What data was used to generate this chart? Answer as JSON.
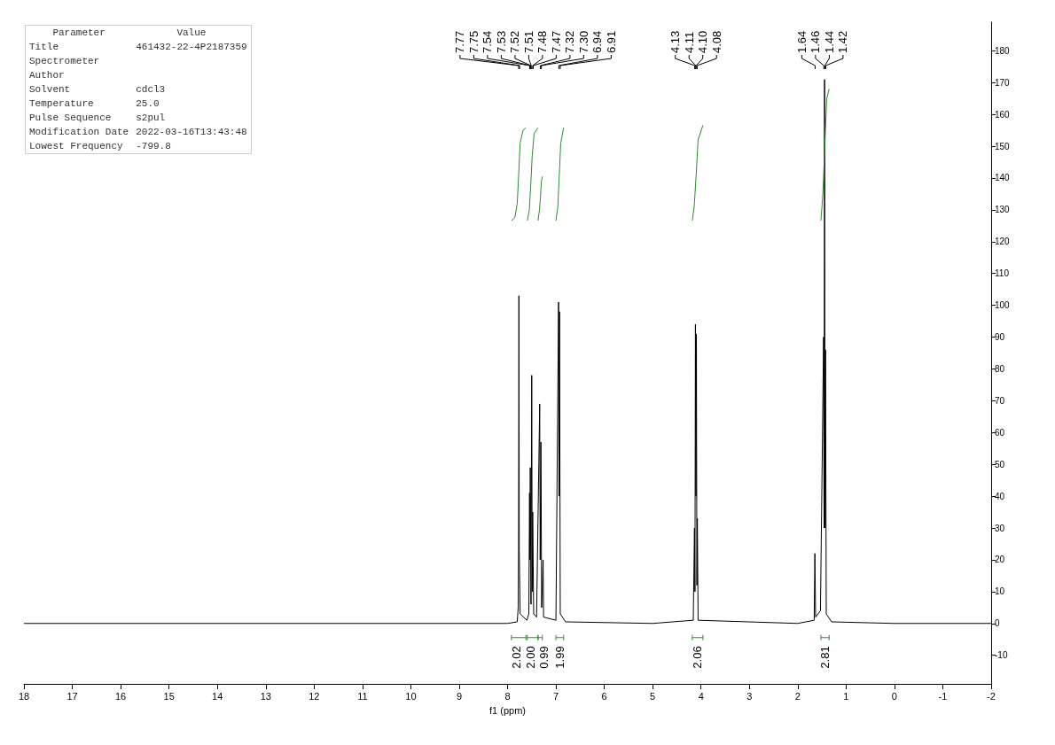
{
  "chart_data": {
    "type": "line",
    "xlabel": "f1 (ppm)",
    "xlim": [
      18,
      -2
    ],
    "xticks": [
      18,
      17,
      16,
      15,
      14,
      13,
      12,
      11,
      10,
      9,
      8,
      7,
      6,
      5,
      4,
      3,
      2,
      1,
      0,
      -1,
      -2
    ],
    "ylim": [
      -19,
      189
    ],
    "yticks": [
      -10,
      0,
      10,
      20,
      30,
      40,
      50,
      60,
      70,
      80,
      90,
      100,
      110,
      120,
      130,
      140,
      150,
      160,
      170,
      180
    ],
    "marker": "none",
    "series": [
      {
        "color": "#000000",
        "x": [
          18,
          8.0,
          7.8,
          7.78,
          7.772,
          7.765,
          7.758,
          7.74,
          7.6,
          7.56,
          7.545,
          7.538,
          7.53,
          7.515,
          7.5,
          7.49,
          7.48,
          7.46,
          7.4,
          7.335,
          7.325,
          7.31,
          7.295,
          7.265,
          7.255,
          7.0,
          6.945,
          6.935,
          6.925,
          6.91,
          6.8,
          5.0,
          4.16,
          4.135,
          4.125,
          4.115,
          4.105,
          4.095,
          4.085,
          4.075,
          4.06,
          2.0,
          1.66,
          1.645,
          1.63,
          1.53,
          1.465,
          1.455,
          1.445,
          1.435,
          1.425,
          1.41,
          1.3,
          0,
          -2
        ],
        "values": [
          0,
          0,
          0.5,
          5,
          23,
          103,
          23,
          3,
          1,
          3,
          41,
          20,
          49,
          6,
          78,
          10,
          35,
          3,
          2,
          69,
          20,
          57,
          5,
          20,
          2,
          1,
          101,
          40,
          98,
          3,
          0.5,
          0,
          1,
          30,
          10,
          94,
          40,
          91,
          12,
          33,
          1,
          0,
          1,
          22,
          2,
          4,
          90,
          30,
          171,
          30,
          86,
          3,
          0.5,
          0,
          0
        ]
      },
      {
        "color": "#2e8b2e",
        "x": [
          7.92,
          7.85,
          7.8,
          7.77,
          7.74,
          7.68,
          7.62
        ],
        "values": [
          126.6,
          127.5,
          132,
          141,
          151,
          155,
          155.8
        ]
      },
      {
        "color": "#2e8b2e",
        "x": [
          7.59,
          7.55,
          7.52,
          7.49,
          7.45,
          7.37
        ],
        "values": [
          126.6,
          130,
          138,
          147,
          154,
          155.8
        ]
      },
      {
        "color": "#2e8b2e",
        "x": [
          7.37,
          7.34,
          7.32,
          7.3,
          7.28
        ],
        "values": [
          126.6,
          130,
          134,
          139,
          140.5
        ]
      },
      {
        "color": "#2e8b2e",
        "x": [
          7.0,
          6.96,
          6.93,
          6.9,
          6.84
        ],
        "values": [
          126.6,
          131,
          141,
          151,
          155.8
        ]
      },
      {
        "color": "#2e8b2e",
        "x": [
          4.18,
          4.14,
          4.1,
          4.06,
          3.96
        ],
        "values": [
          126.6,
          131,
          141,
          152,
          156.6
        ]
      },
      {
        "color": "#2e8b2e",
        "x": [
          1.52,
          1.48,
          1.44,
          1.4,
          1.35
        ],
        "values": [
          126.6,
          135,
          150,
          165,
          168
        ]
      }
    ],
    "annotations": [
      "Parameter\tValue",
      "Title\t461432-22-4P2187359",
      "Spectrometer",
      "Author",
      "Solvent\tcdcl3",
      "Temperature\t25.0",
      "Pulse Sequence\ts2pul",
      "Modification Date\t2022-03-16T13:43:48",
      "Lowest Frequency\t-799.8",
      {
        "text": "7.77",
        "x": 7.77
      },
      {
        "text": "7.75",
        "x": 7.75
      },
      {
        "text": "7.54",
        "x": 7.54
      },
      {
        "text": "7.53",
        "x": 7.53
      },
      {
        "text": "7.52",
        "x": 7.52
      },
      {
        "text": "7.51",
        "x": 7.51
      },
      {
        "text": "7.48",
        "x": 7.48
      },
      {
        "text": "7.47",
        "x": 7.47
      },
      {
        "text": "7.32",
        "x": 7.32
      },
      {
        "text": "7.30",
        "x": 7.3
      },
      {
        "text": "6.94",
        "x": 6.94
      },
      {
        "text": "6.91",
        "x": 6.91
      },
      {
        "text": "4.13",
        "x": 4.13
      },
      {
        "text": "4.11",
        "x": 4.11
      },
      {
        "text": "4.10",
        "x": 4.1
      },
      {
        "text": "4.08",
        "x": 4.08
      },
      {
        "text": "1.64",
        "x": 1.64
      },
      {
        "text": "1.46",
        "x": 1.46
      },
      {
        "text": "1.44",
        "x": 1.44
      },
      {
        "text": "1.42",
        "x": 1.42
      },
      "2.02",
      "2.00",
      "0.99",
      "1.99",
      "2.06",
      "2.81"
    ]
  }
}
